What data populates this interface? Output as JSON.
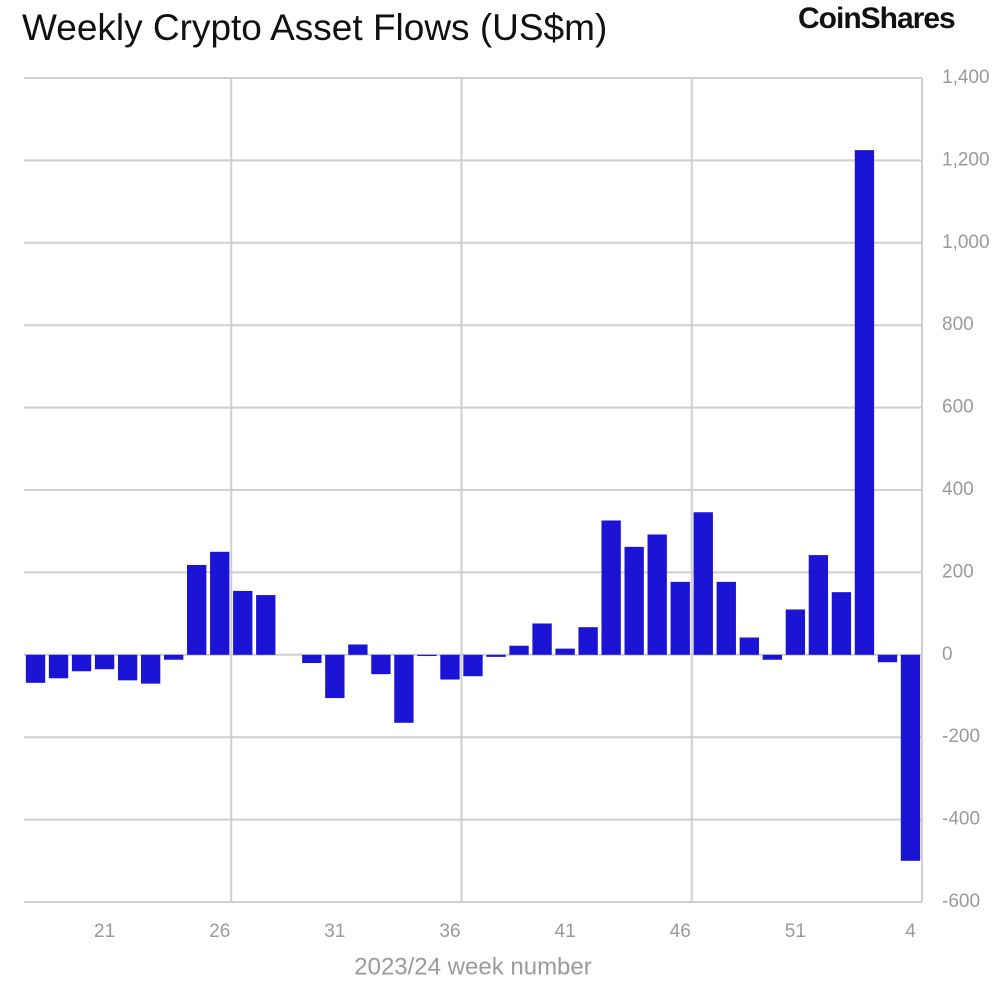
{
  "chart_data": {
    "type": "bar",
    "title": "Weekly Crypto Asset Flows (US$m)",
    "brand": "CoinShares",
    "x_label": "2023/24 week number",
    "categories": [
      null,
      null,
      null,
      "21",
      null,
      null,
      null,
      null,
      "26",
      null,
      null,
      null,
      null,
      "31",
      null,
      null,
      null,
      null,
      "36",
      null,
      null,
      null,
      null,
      "41",
      null,
      null,
      null,
      null,
      "46",
      null,
      null,
      null,
      null,
      "51",
      null,
      null,
      null,
      null,
      "4"
    ],
    "values": [
      -68,
      -57,
      -40,
      -35,
      -62,
      -70,
      -12,
      218,
      250,
      155,
      145,
      0,
      -20,
      -105,
      25,
      -47,
      -165,
      -3,
      -60,
      -52,
      -5,
      22,
      76,
      15,
      67,
      326,
      262,
      292,
      177,
      346,
      177,
      42,
      -12,
      110,
      242,
      152,
      1225,
      -18,
      -500
    ],
    "color": "#1c14d4",
    "ylim": [
      -600,
      1400
    ],
    "yticks": [
      -600,
      -400,
      -200,
      0,
      200,
      400,
      600,
      800,
      {
        "value": 1000,
        "label": "1,000"
      },
      {
        "value": 1200,
        "label": "1,200"
      },
      {
        "value": 1400,
        "label": "1,400"
      }
    ],
    "y_axis_side": "right",
    "grid": true
  }
}
